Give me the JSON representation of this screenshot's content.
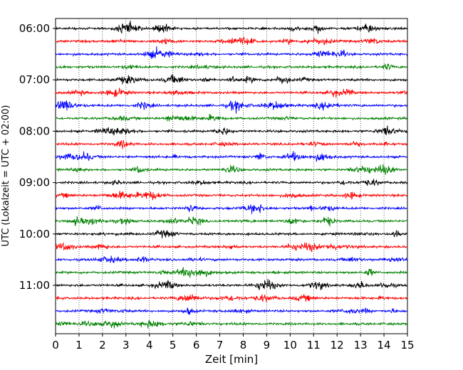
{
  "chart_data": {
    "type": "line",
    "chart_kind": "helicorder seismogram",
    "title": "",
    "xlabel": "Zeit  [min]",
    "ylabel": "UTC (Lokalzeit = UTC + 02:00)",
    "xlim": [
      0,
      15
    ],
    "x_ticks": [
      "0",
      "1",
      "2",
      "3",
      "4",
      "5",
      "6",
      "7",
      "8",
      "9",
      "10",
      "11",
      "12",
      "13",
      "14",
      "15"
    ],
    "y_ticks": [
      "06:00",
      "07:00",
      "08:00",
      "09:00",
      "10:00",
      "11:00"
    ],
    "grid": "vertical dotted lines at each minute",
    "legend": "none",
    "trace_colors": [
      "#000000",
      "#ff0000",
      "#0000ff",
      "#008000"
    ],
    "trace_start_times": [
      "06:00",
      "06:15",
      "06:30",
      "06:45",
      "07:00",
      "07:15",
      "07:30",
      "07:45",
      "08:00",
      "08:15",
      "08:30",
      "08:45",
      "09:00",
      "09:15",
      "09:30",
      "09:45",
      "10:00",
      "10:15",
      "10:30",
      "10:45",
      "11:00",
      "11:15",
      "11:30",
      "11:45"
    ]
  }
}
